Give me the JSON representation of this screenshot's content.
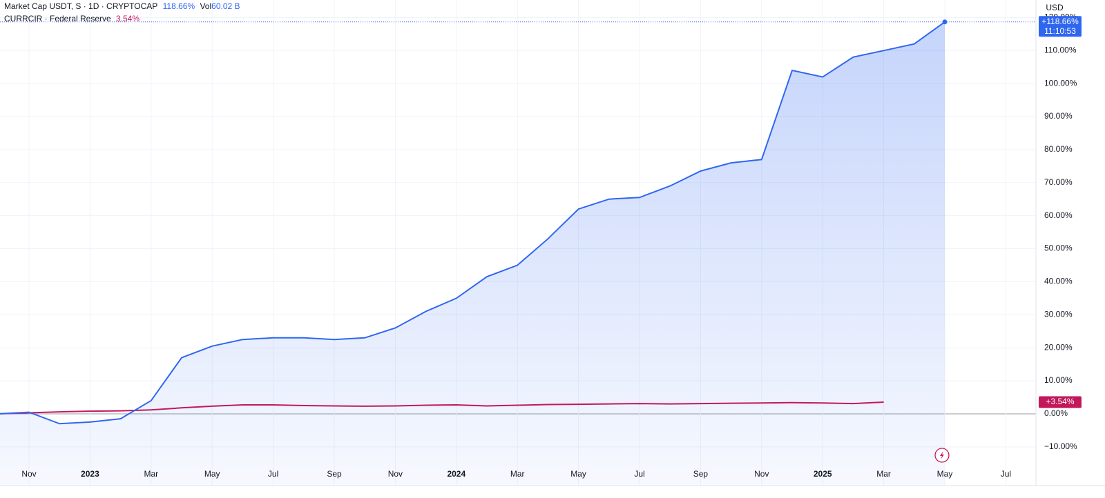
{
  "chart_data": {
    "type": "line",
    "header": {
      "line1": "Market Cap USDT, S · 1D · CRYPTOCAP",
      "line1_value": "118.66%",
      "vol_label": "Vol",
      "vol_value": "60.02 B",
      "line2": "CURRCIR · Federal Reserve",
      "line2_value": "3.54%"
    },
    "currency": "USD",
    "time_label": "11:10:53",
    "categories": [
      null,
      "Nov",
      null,
      "2023",
      null,
      "Mar",
      null,
      "May",
      null,
      "Jul",
      null,
      "Sep",
      null,
      "Nov",
      null,
      "2024",
      null,
      "Mar",
      null,
      "May",
      null,
      "Jul",
      null,
      "Sep",
      null,
      "Nov",
      null,
      "2025",
      null,
      "Mar",
      null,
      "May",
      null,
      "Jul"
    ],
    "series": [
      {
        "name": "Market Cap USDT",
        "color": "#2f66f0",
        "last_label": "+118.66%",
        "values": [
          0,
          0.5,
          -3,
          -2.5,
          -1.5,
          4,
          17,
          20.5,
          22.5,
          23,
          23,
          22.5,
          23,
          26,
          31,
          35,
          41.5,
          45,
          53,
          62,
          65,
          65.5,
          69,
          73.5,
          76,
          77,
          104,
          102,
          108,
          110,
          112,
          118.66,
          null,
          null
        ]
      },
      {
        "name": "CURRCIR",
        "color": "#c2185b",
        "last_label": "+3.54%",
        "values": [
          0,
          0.3,
          0.6,
          0.8,
          0.9,
          1.2,
          1.8,
          2.3,
          2.7,
          2.7,
          2.5,
          2.4,
          2.3,
          2.4,
          2.6,
          2.7,
          2.4,
          2.6,
          2.8,
          2.9,
          3,
          3.1,
          3,
          3.1,
          3.2,
          3.3,
          3.4,
          3.3,
          3.1,
          3.54,
          null,
          null,
          null,
          null
        ]
      }
    ],
    "ylim": [
      -16.3,
      125.3
    ],
    "yticks": [
      {
        "value": -10,
        "label": "−10.00%"
      },
      {
        "value": 0,
        "label": "0.00%"
      },
      {
        "value": 10,
        "label": "10.00%"
      },
      {
        "value": 20,
        "label": "20.00%"
      },
      {
        "value": 30,
        "label": "30.00%"
      },
      {
        "value": 40,
        "label": "40.00%"
      },
      {
        "value": 50,
        "label": "50.00%"
      },
      {
        "value": 60,
        "label": "60.00%"
      },
      {
        "value": 70,
        "label": "70.00%"
      },
      {
        "value": 80,
        "label": "80.00%"
      },
      {
        "value": 90,
        "label": "90.00%"
      },
      {
        "value": 100,
        "label": "100.00%"
      },
      {
        "value": 110,
        "label": "110.00%"
      },
      {
        "value": 120,
        "label": "120.00%"
      }
    ],
    "grid": true
  }
}
